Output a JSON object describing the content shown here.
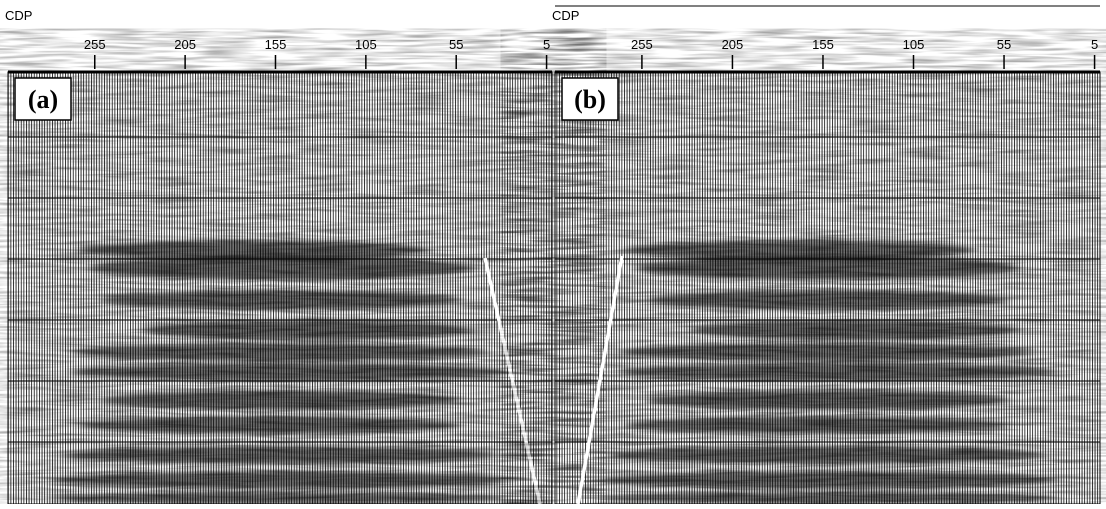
{
  "panels": [
    {
      "label": "(a)",
      "axis_title": "CDP",
      "xlim": [
        303,
        2
      ],
      "xticks": [
        255,
        205,
        155,
        105,
        55,
        5
      ]
    },
    {
      "label": "(b)",
      "axis_title": "CDP",
      "xlim": [
        303,
        2
      ],
      "xticks": [
        255,
        205,
        155,
        105,
        55,
        5
      ]
    }
  ]
}
